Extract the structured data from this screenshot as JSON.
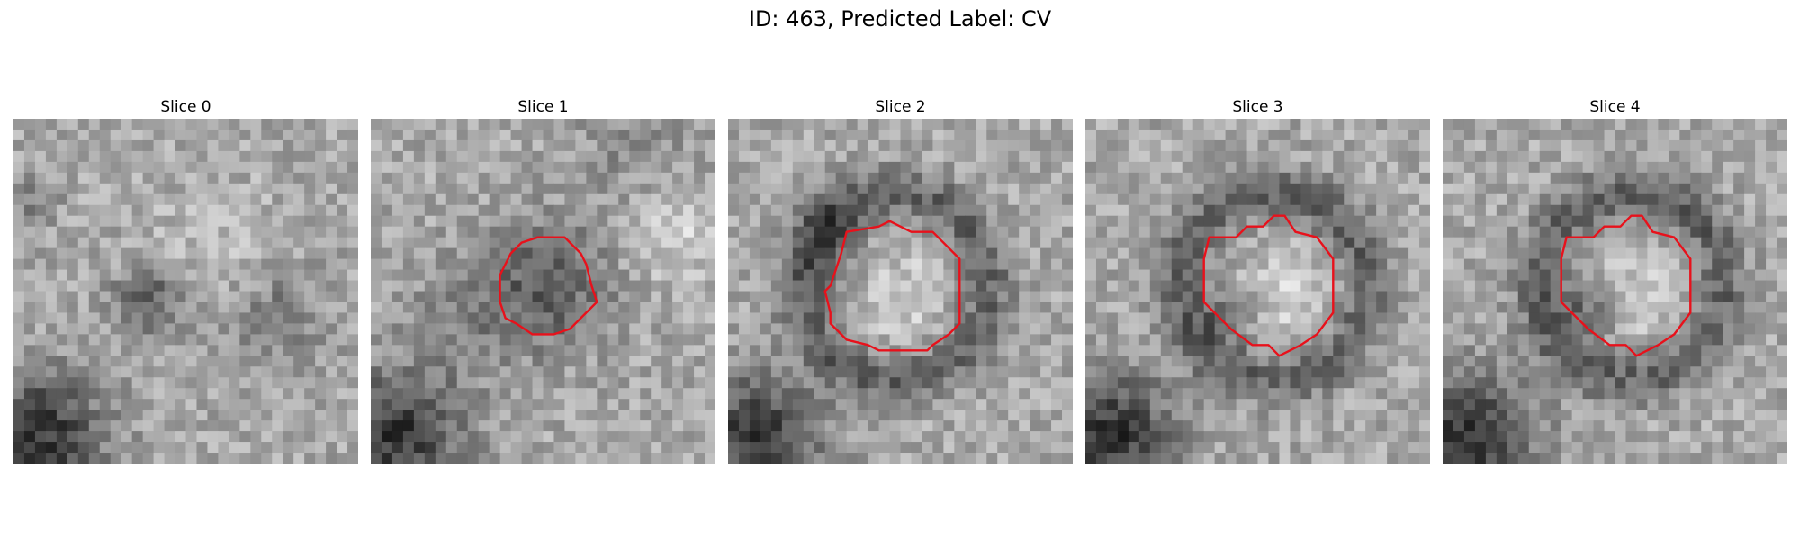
{
  "figure": {
    "suptitle": "ID: 463, Predicted Label: CV"
  },
  "panels": [
    {
      "title": "Slice 0",
      "seed": 11,
      "contour": null
    },
    {
      "title": "Slice 1",
      "seed": 23,
      "contour": "small-octagon"
    },
    {
      "title": "Slice 2",
      "seed": 37,
      "contour": "large-irregular"
    },
    {
      "title": "Slice 3",
      "seed": 41,
      "contour": "octagon-right"
    },
    {
      "title": "Slice 4",
      "seed": 53,
      "contour": "octagon-right"
    }
  ],
  "colors": {
    "contour": "#e8111b",
    "background": "#ffffff"
  }
}
